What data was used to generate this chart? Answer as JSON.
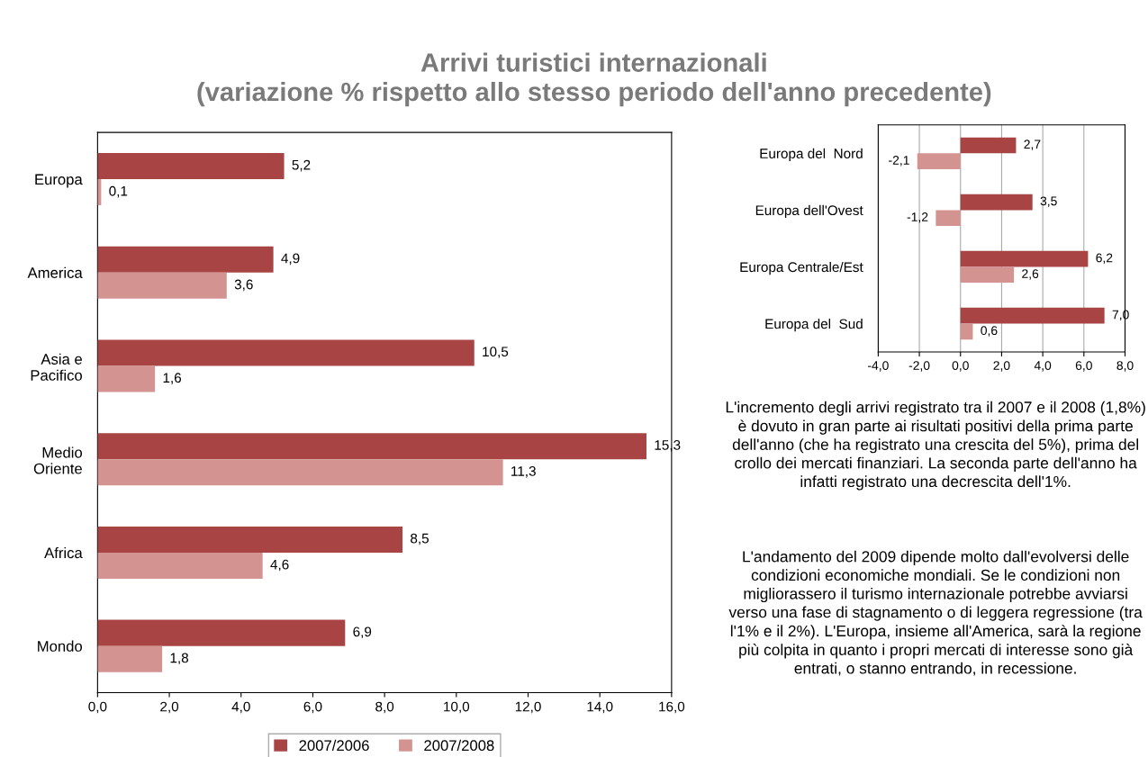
{
  "chart_data": [
    {
      "type": "bar",
      "orientation": "horizontal",
      "title": "Arrivi turistici internazionali\n(variazione % rispetto allo stesso periodo dell'anno precedente)",
      "categories": [
        "Europa",
        "America",
        "Asia e\nPacifico",
        "Medio\nOriente",
        "Africa",
        "Mondo"
      ],
      "series": [
        {
          "name": "2007/2006",
          "color": "#a84444",
          "values": [
            5.2,
            4.9,
            10.5,
            15.3,
            8.5,
            6.9
          ],
          "value_labels": [
            "5,2",
            "4,9",
            "10,5",
            "15,3",
            "8,5",
            "6,9"
          ]
        },
        {
          "name": "2007/2008",
          "color": "#d39391",
          "values": [
            0.1,
            3.6,
            1.6,
            11.3,
            4.6,
            1.8
          ],
          "value_labels": [
            "0,1",
            "3,6",
            "1,6",
            "11,3",
            "4,6",
            "1,8"
          ]
        }
      ],
      "xlim": [
        0,
        16
      ],
      "xticks": [
        {
          "value": 0,
          "label": "0,0"
        },
        {
          "value": 2,
          "label": "2,0"
        },
        {
          "value": 4,
          "label": "4,0"
        },
        {
          "value": 6,
          "label": "6,0"
        },
        {
          "value": 8,
          "label": "8,0"
        },
        {
          "value": 10,
          "label": "10,0"
        },
        {
          "value": 12,
          "label": "12,0"
        },
        {
          "value": 14,
          "label": "14,0"
        },
        {
          "value": 16,
          "label": "16,0"
        }
      ],
      "grid": false,
      "legend": "bottom"
    },
    {
      "type": "bar",
      "orientation": "horizontal",
      "categories": [
        "Europa del  Nord",
        "Europa dell'Ovest",
        "Europa Centrale/Est",
        "Europa del  Sud"
      ],
      "series": [
        {
          "color": "#a84444",
          "values": [
            2.7,
            3.5,
            6.2,
            7.0
          ],
          "value_labels": [
            "2,7",
            "3,5",
            "6,2",
            "7,0"
          ]
        },
        {
          "color": "#d39391",
          "values": [
            -2.1,
            -1.2,
            2.6,
            0.6
          ],
          "value_labels": [
            "-2,1",
            "-1,2",
            "2,6",
            "0,6"
          ]
        }
      ],
      "xlim": [
        -4,
        8
      ],
      "xticks": [
        {
          "value": -4,
          "label": "-4,0"
        },
        {
          "value": -2,
          "label": "-2,0"
        },
        {
          "value": 0,
          "label": "0,0"
        },
        {
          "value": 2,
          "label": "2,0"
        },
        {
          "value": 4,
          "label": "4,0"
        },
        {
          "value": 6,
          "label": "6,0"
        },
        {
          "value": 8,
          "label": "8,0"
        }
      ],
      "grid": "x"
    },
    {
      "type": "other",
      "annotations": [
        "L'incremento degli arrivi registrato tra il 2007 e il 2008 (1,8%) è dovuto in gran parte ai risultati positivi della prima parte dell'anno (che ha registrato una crescita del 5%), prima del crollo dei mercati finanziari. La seconda parte dell'anno ha infatti registrato una decrescita dell'1%.",
        "L'andamento del 2009 dipende molto dall'evolversi delle condizioni economiche mondiali. Se le condizioni non migliorassero il turismo internazionale potrebbe avviarsi verso una fase di stagnamento o di leggera regressione (tra l'1% e il 2%). L'Europa, insieme all'America, sarà la regione più colpita in quanto i propri mercati di interesse sono già entrati, o stanno entrando, in recessione."
      ]
    }
  ]
}
